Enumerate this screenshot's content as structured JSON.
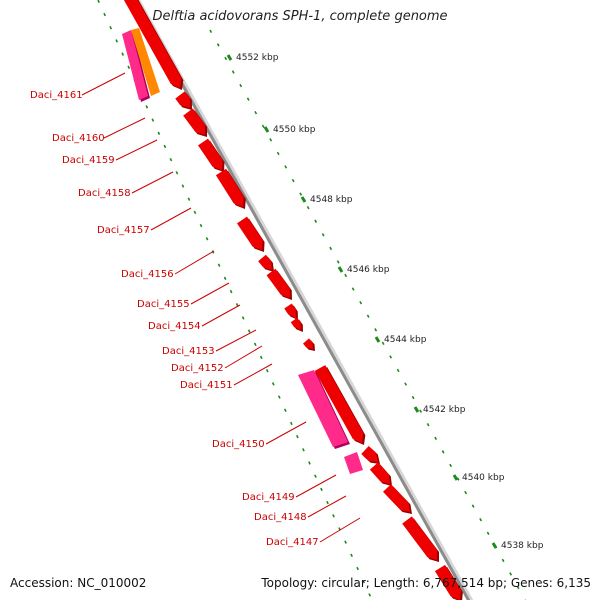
{
  "title": "Delftia acidovorans SPH-1, complete genome",
  "accession": "Accession: NC_010002",
  "topology": "Topology: circular; Length: 6,767,514 bp; Genes: 6,135",
  "colors": {
    "gene": "#ee0000",
    "gene_shadow": "#990000",
    "pink_gene": "#ff2a8a",
    "orange_gene": "#ff8800",
    "backbone": "#8c8c8c",
    "tick_green": "#1e8a1e",
    "label_red": "#cc0000"
  },
  "ruler_labels": [
    "4552 kbp",
    "4550 kbp",
    "4548 kbp",
    "4546 kbp",
    "4544 kbp",
    "4542 kbp",
    "4540 kbp",
    "4538 kbp"
  ],
  "genes": [
    {
      "name": "Daci_4161"
    },
    {
      "name": "Daci_4160"
    },
    {
      "name": "Daci_4159"
    },
    {
      "name": "Daci_4158"
    },
    {
      "name": "Daci_4157"
    },
    {
      "name": "Daci_4156"
    },
    {
      "name": "Daci_4155"
    },
    {
      "name": "Daci_4154"
    },
    {
      "name": "Daci_4153"
    },
    {
      "name": "Daci_4152"
    },
    {
      "name": "Daci_4151"
    },
    {
      "name": "Daci_4150"
    },
    {
      "name": "Daci_4149"
    },
    {
      "name": "Daci_4148"
    },
    {
      "name": "Daci_4147"
    }
  ]
}
